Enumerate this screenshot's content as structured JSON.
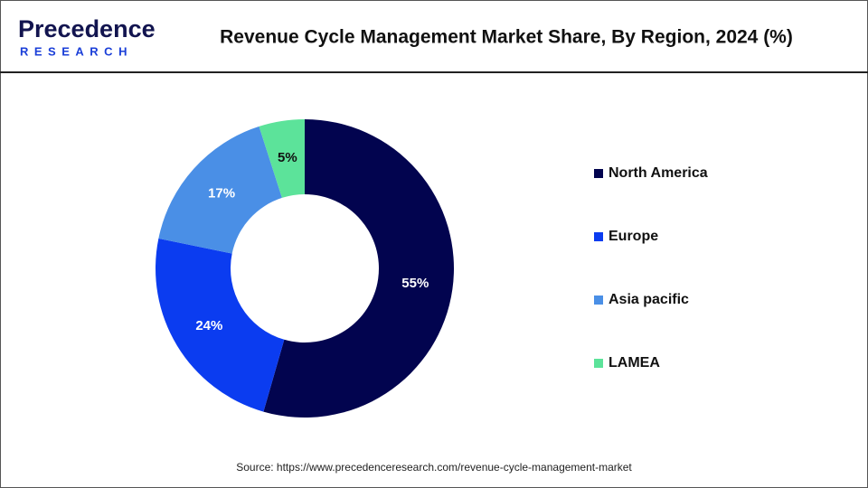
{
  "header": {
    "logo_top": "Precedence",
    "logo_bottom": "RESEARCH",
    "title": "Revenue Cycle Management Market Share, By Region, 2024 (%)"
  },
  "chart_data": {
    "type": "donut",
    "categories": [
      "North America",
      "Europe",
      "Asia pacific",
      "LAMEA"
    ],
    "values": [
      55,
      24,
      17,
      5
    ],
    "value_labels": [
      "55%",
      "24%",
      "17%",
      "5%"
    ],
    "colors": [
      "#02044f",
      "#0b3cf0",
      "#4a8fe6",
      "#5ce39a"
    ],
    "legend": "right"
  },
  "source": "Source: https://www.precedenceresearch.com/revenue-cycle-management-market"
}
